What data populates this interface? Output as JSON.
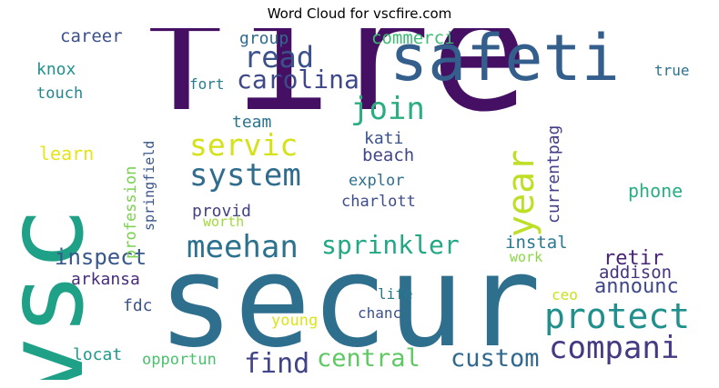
{
  "title": "Word Cloud for vscfire.com",
  "words": [
    {
      "text": "fire",
      "color": "#451064"
    },
    {
      "text": "secur",
      "color": "#2e6f8e"
    },
    {
      "text": "vsc",
      "color": "#1fa187"
    },
    {
      "text": "safeti",
      "color": "#345f8d"
    },
    {
      "text": "meehan",
      "color": "#2c728e"
    },
    {
      "text": "protect",
      "color": "#21908d"
    },
    {
      "text": "compani",
      "color": "#443a83"
    },
    {
      "text": "system",
      "color": "#2f6c8e"
    },
    {
      "text": "servic",
      "color": "#d5e21a"
    },
    {
      "text": "carolina",
      "color": "#3e4989"
    },
    {
      "text": "year",
      "color": "#bddf26"
    },
    {
      "text": "join",
      "color": "#2aae80"
    },
    {
      "text": "read",
      "color": "#3b518b"
    },
    {
      "text": "sprinkler",
      "color": "#22a884"
    },
    {
      "text": "find",
      "color": "#414487"
    },
    {
      "text": "central",
      "color": "#5ec962"
    },
    {
      "text": "custom",
      "color": "#31688e"
    },
    {
      "text": "inspect",
      "color": "#38588c"
    },
    {
      "text": "retir",
      "color": "#482475"
    },
    {
      "text": "announc",
      "color": "#3f4788"
    },
    {
      "text": "addison",
      "color": "#46337f"
    },
    {
      "text": "phone",
      "color": "#29af7f"
    },
    {
      "text": "instal",
      "color": "#2a788e"
    },
    {
      "text": "commerci",
      "color": "#3dbc74"
    },
    {
      "text": "career",
      "color": "#3b518b"
    },
    {
      "text": "group",
      "color": "#30698e"
    },
    {
      "text": "knox",
      "color": "#21918c"
    },
    {
      "text": "touch",
      "color": "#24868e"
    },
    {
      "text": "learn",
      "color": "#e5e419"
    },
    {
      "text": "profession",
      "color": "#7ad151"
    },
    {
      "text": "springfield",
      "color": "#39568c"
    },
    {
      "text": "team",
      "color": "#2b748e"
    },
    {
      "text": "kati",
      "color": "#3a538b"
    },
    {
      "text": "beach",
      "color": "#3f4788"
    },
    {
      "text": "explor",
      "color": "#2d708e"
    },
    {
      "text": "charlott",
      "color": "#3e4c8a"
    },
    {
      "text": "provid",
      "color": "#424186"
    },
    {
      "text": "worth",
      "color": "#9fda3a"
    },
    {
      "text": "currentpag",
      "color": "#433e85"
    },
    {
      "text": "fort",
      "color": "#287d8e"
    },
    {
      "text": "true",
      "color": "#2c728e"
    },
    {
      "text": "arkansa",
      "color": "#472d7b"
    },
    {
      "text": "fdc",
      "color": "#3a538b"
    },
    {
      "text": "work",
      "color": "#8bd646"
    },
    {
      "text": "ceo",
      "color": "#cae11f"
    },
    {
      "text": "life",
      "color": "#2a788e"
    },
    {
      "text": "chanc",
      "color": "#3b528b"
    },
    {
      "text": "young",
      "color": "#dde318"
    },
    {
      "text": "locat",
      "color": "#1f998a"
    },
    {
      "text": "opportun",
      "color": "#4ac16d"
    }
  ]
}
